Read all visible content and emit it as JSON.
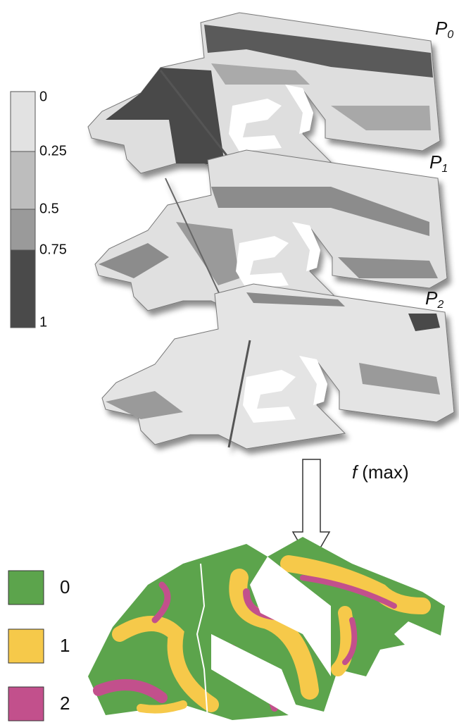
{
  "colorbar": {
    "labels": [
      "0",
      "0.25",
      "0.5",
      "0.75",
      "1"
    ]
  },
  "slices": [
    {
      "main": "P",
      "sub": "0"
    },
    {
      "main": "P",
      "sub": "1"
    },
    {
      "main": "P",
      "sub": "2"
    }
  ],
  "operator": {
    "func": "f",
    "arg": "(max)"
  },
  "legend": [
    {
      "label": "0",
      "color": "#5ca44c"
    },
    {
      "label": "1",
      "color": "#f6c94a"
    },
    {
      "label": "2",
      "color": "#c2508c"
    }
  ]
}
